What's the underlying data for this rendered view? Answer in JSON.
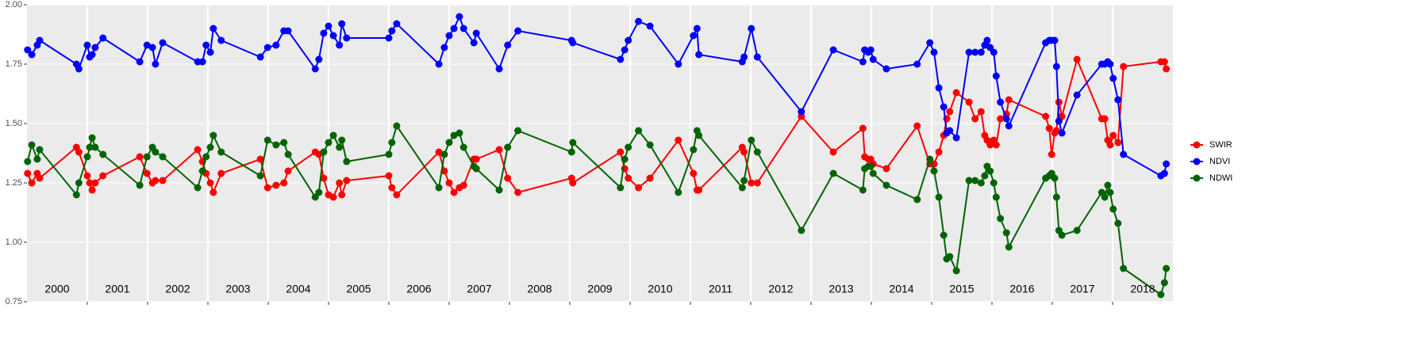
{
  "chart_data": {
    "type": "line",
    "x": [
      2000.01,
      2000.08,
      2000.17,
      2000.21,
      2000.82,
      2000.86,
      2001.0,
      2001.04,
      2001.08,
      2001.13,
      2001.26,
      2001.87,
      2001.99,
      2002.08,
      2002.13,
      2002.25,
      2002.83,
      2002.91,
      2002.97,
      2003.04,
      2003.09,
      2003.22,
      2003.87,
      2003.99,
      2004.13,
      2004.26,
      2004.33,
      2004.78,
      2004.84,
      2004.92,
      2005.0,
      2005.08,
      2005.18,
      2005.22,
      2005.3,
      2006.0,
      2006.05,
      2006.13,
      2006.83,
      2006.92,
      2007.0,
      2007.08,
      2007.17,
      2007.24,
      2007.41,
      2007.45,
      2007.83,
      2007.97,
      2008.14,
      2009.03,
      2009.05,
      2009.84,
      2009.91,
      2009.97,
      2010.14,
      2010.33,
      2010.8,
      2011.05,
      2011.11,
      2011.14,
      2011.86,
      2011.89,
      2012.01,
      2012.11,
      2012.84,
      2013.37,
      2013.86,
      2013.89,
      2013.95,
      2013.99,
      2014.03,
      2014.25,
      2014.76,
      2014.97,
      2015.04,
      2015.12,
      2015.2,
      2015.25,
      2015.3,
      2015.41,
      2015.62,
      2015.72,
      2015.82,
      2015.88,
      2015.92,
      2015.97,
      2016.03,
      2016.07,
      2016.14,
      2016.24,
      2016.28,
      2016.89,
      2016.95,
      2016.99,
      2017.04,
      2017.07,
      2017.11,
      2017.16,
      2017.41,
      2017.82,
      2017.87,
      2017.92,
      2017.96,
      2018.01,
      2018.09,
      2018.18,
      2018.8,
      2018.86,
      2018.89
    ],
    "series": [
      {
        "name": "SWIR",
        "color": "#ff0000",
        "values": [
          1.29,
          1.25,
          1.29,
          1.27,
          1.4,
          1.38,
          1.28,
          1.25,
          1.22,
          1.25,
          1.28,
          1.36,
          1.29,
          1.25,
          1.26,
          1.26,
          1.39,
          1.34,
          1.29,
          1.25,
          1.21,
          1.29,
          1.35,
          1.23,
          1.24,
          1.25,
          1.3,
          1.38,
          1.37,
          1.27,
          1.2,
          1.19,
          1.25,
          1.2,
          1.26,
          1.28,
          1.23,
          1.2,
          1.38,
          1.3,
          1.25,
          1.21,
          1.23,
          1.24,
          1.35,
          1.35,
          1.39,
          1.27,
          1.21,
          1.27,
          1.25,
          1.38,
          1.31,
          1.27,
          1.23,
          1.27,
          1.43,
          1.29,
          1.22,
          1.22,
          1.4,
          1.38,
          1.25,
          1.25,
          1.53,
          1.38,
          1.48,
          1.36,
          1.35,
          1.35,
          1.33,
          1.31,
          1.49,
          1.33,
          1.33,
          1.38,
          1.45,
          1.52,
          1.55,
          1.63,
          1.59,
          1.52,
          1.55,
          1.45,
          1.43,
          1.41,
          1.43,
          1.41,
          1.52,
          1.54,
          1.6,
          1.53,
          1.48,
          1.37,
          1.46,
          1.47,
          1.59,
          1.53,
          1.77,
          1.52,
          1.52,
          1.43,
          1.41,
          1.45,
          1.42,
          1.74,
          1.76,
          1.76,
          1.73
        ]
      },
      {
        "name": "NDVI",
        "color": "#0000ff",
        "values": [
          1.81,
          1.79,
          1.83,
          1.85,
          1.75,
          1.73,
          1.83,
          1.78,
          1.79,
          1.82,
          1.86,
          1.76,
          1.83,
          1.82,
          1.75,
          1.84,
          1.76,
          1.76,
          1.83,
          1.8,
          1.9,
          1.85,
          1.78,
          1.82,
          1.83,
          1.89,
          1.89,
          1.73,
          1.77,
          1.88,
          1.91,
          1.87,
          1.83,
          1.92,
          1.86,
          1.86,
          1.89,
          1.92,
          1.75,
          1.82,
          1.87,
          1.9,
          1.95,
          1.9,
          1.84,
          1.88,
          1.73,
          1.83,
          1.89,
          1.85,
          1.84,
          1.77,
          1.81,
          1.85,
          1.93,
          1.91,
          1.75,
          1.87,
          1.9,
          1.79,
          1.76,
          1.78,
          1.9,
          1.78,
          1.55,
          1.81,
          1.76,
          1.81,
          1.8,
          1.81,
          1.77,
          1.73,
          1.75,
          1.84,
          1.8,
          1.65,
          1.57,
          1.46,
          1.47,
          1.44,
          1.8,
          1.8,
          1.8,
          1.83,
          1.85,
          1.82,
          1.8,
          1.7,
          1.59,
          1.52,
          1.49,
          1.84,
          1.85,
          1.85,
          1.85,
          1.74,
          1.51,
          1.46,
          1.62,
          1.75,
          1.75,
          1.76,
          1.75,
          1.69,
          1.6,
          1.37,
          1.28,
          1.29,
          1.33
        ]
      },
      {
        "name": "NDWI",
        "color": "#006400",
        "values": [
          1.34,
          1.41,
          1.35,
          1.39,
          1.2,
          1.25,
          1.36,
          1.4,
          1.44,
          1.4,
          1.37,
          1.24,
          1.36,
          1.4,
          1.38,
          1.36,
          1.23,
          1.3,
          1.36,
          1.4,
          1.45,
          1.38,
          1.28,
          1.43,
          1.41,
          1.42,
          1.37,
          1.19,
          1.21,
          1.38,
          1.42,
          1.45,
          1.4,
          1.43,
          1.34,
          1.37,
          1.42,
          1.49,
          1.23,
          1.37,
          1.42,
          1.45,
          1.46,
          1.4,
          1.32,
          1.31,
          1.22,
          1.4,
          1.47,
          1.38,
          1.42,
          1.23,
          1.35,
          1.4,
          1.47,
          1.41,
          1.21,
          1.39,
          1.47,
          1.45,
          1.23,
          1.26,
          1.43,
          1.38,
          1.05,
          1.29,
          1.22,
          1.31,
          1.32,
          1.32,
          1.29,
          1.24,
          1.18,
          1.35,
          1.3,
          1.19,
          1.03,
          0.93,
          0.94,
          0.88,
          1.26,
          1.26,
          1.25,
          1.28,
          1.32,
          1.3,
          1.25,
          1.19,
          1.1,
          1.04,
          0.98,
          1.27,
          1.28,
          1.29,
          1.27,
          1.19,
          1.05,
          1.03,
          1.05,
          1.21,
          1.19,
          1.24,
          1.21,
          1.14,
          1.08,
          0.89,
          0.78,
          0.83,
          0.89
        ]
      }
    ],
    "xlim": [
      2000,
      2019
    ],
    "xticks": [
      {
        "value": 2000.5,
        "label": "2000"
      },
      {
        "value": 2001.5,
        "label": "2001"
      },
      {
        "value": 2002.5,
        "label": "2002"
      },
      {
        "value": 2003.5,
        "label": "2003"
      },
      {
        "value": 2004.5,
        "label": "2004"
      },
      {
        "value": 2005.5,
        "label": "2005"
      },
      {
        "value": 2006.5,
        "label": "2006"
      },
      {
        "value": 2007.5,
        "label": "2007"
      },
      {
        "value": 2008.5,
        "label": "2008"
      },
      {
        "value": 2009.5,
        "label": "2009"
      },
      {
        "value": 2010.5,
        "label": "2010"
      },
      {
        "value": 2011.5,
        "label": "2011"
      },
      {
        "value": 2012.5,
        "label": "2012"
      },
      {
        "value": 2013.5,
        "label": "2013"
      },
      {
        "value": 2014.5,
        "label": "2014"
      },
      {
        "value": 2015.5,
        "label": "2015"
      },
      {
        "value": 2016.5,
        "label": "2016"
      },
      {
        "value": 2017.5,
        "label": "2017"
      },
      {
        "value": 2018.5,
        "label": "2018"
      }
    ],
    "x_gridlines": [
      2001,
      2002,
      2003,
      2004,
      2005,
      2006,
      2007,
      2008,
      2009,
      2010,
      2011,
      2012,
      2013,
      2014,
      2015,
      2016,
      2017,
      2018
    ],
    "ylim": [
      0.75,
      2.0
    ],
    "yticks": [
      {
        "value": 0.75,
        "label": "0.75"
      },
      {
        "value": 1.0,
        "label": "1.00"
      },
      {
        "value": 1.25,
        "label": "1.25"
      },
      {
        "value": 1.5,
        "label": "1.50"
      },
      {
        "value": 1.75,
        "label": "1.75"
      },
      {
        "value": 2.0,
        "label": "2.00"
      }
    ],
    "grid": true,
    "legend": "right"
  }
}
